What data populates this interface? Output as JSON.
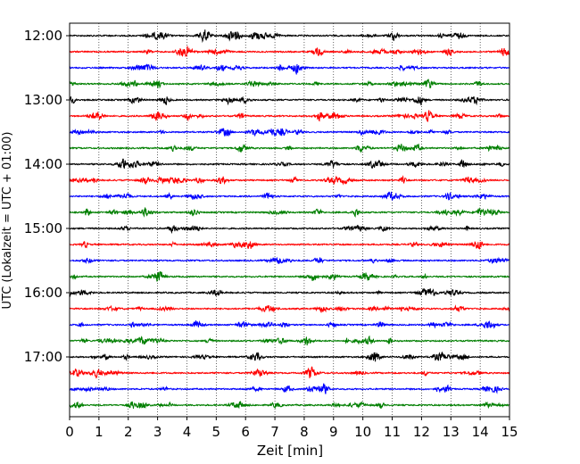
{
  "chart_data": {
    "type": "line",
    "title": "",
    "xlabel": "Zeit  [min]",
    "ylabel": "UTC (Lokalzeit = UTC + 01:00)",
    "xlim": [
      0,
      15
    ],
    "x_ticks": [
      "0",
      "1",
      "2",
      "3",
      "4",
      "5",
      "6",
      "7",
      "8",
      "9",
      "10",
      "11",
      "12",
      "13",
      "14",
      "15"
    ],
    "y_tick_labels": [
      "12:00",
      "13:00",
      "14:00",
      "15:00",
      "16:00",
      "17:00"
    ],
    "grid": "vertical dotted lines at each minute",
    "trace_colors": [
      "#000000",
      "#ff0000",
      "#0000ff",
      "#007f00"
    ],
    "traces": [
      {
        "start": "12:00",
        "color": "#000000"
      },
      {
        "start": "12:15",
        "color": "#ff0000"
      },
      {
        "start": "12:30",
        "color": "#0000ff"
      },
      {
        "start": "12:45",
        "color": "#007f00"
      },
      {
        "start": "13:00",
        "color": "#000000"
      },
      {
        "start": "13:15",
        "color": "#ff0000"
      },
      {
        "start": "13:30",
        "color": "#0000ff"
      },
      {
        "start": "13:45",
        "color": "#007f00"
      },
      {
        "start": "14:00",
        "color": "#000000"
      },
      {
        "start": "14:15",
        "color": "#ff0000"
      },
      {
        "start": "14:30",
        "color": "#0000ff"
      },
      {
        "start": "14:45",
        "color": "#007f00"
      },
      {
        "start": "15:00",
        "color": "#000000"
      },
      {
        "start": "15:15",
        "color": "#ff0000"
      },
      {
        "start": "15:30",
        "color": "#0000ff"
      },
      {
        "start": "15:45",
        "color": "#007f00"
      },
      {
        "start": "16:00",
        "color": "#000000"
      },
      {
        "start": "16:15",
        "color": "#ff0000"
      },
      {
        "start": "16:30",
        "color": "#0000ff"
      },
      {
        "start": "16:45",
        "color": "#007f00"
      },
      {
        "start": "17:00",
        "color": "#000000"
      },
      {
        "start": "17:15",
        "color": "#ff0000"
      },
      {
        "start": "17:30",
        "color": "#0000ff"
      },
      {
        "start": "17:45",
        "color": "#007f00"
      }
    ]
  }
}
